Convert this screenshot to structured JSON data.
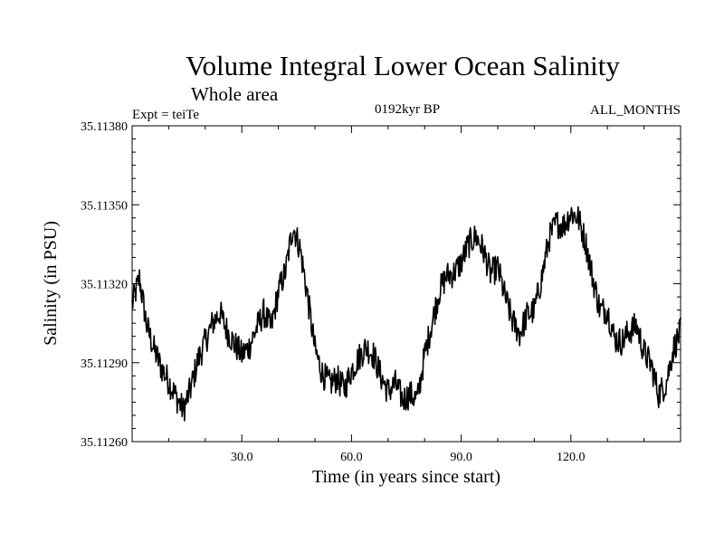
{
  "chart_data": {
    "type": "line",
    "title": "Volume Integral Lower Ocean Salinity",
    "subtitle": "Whole area",
    "experiment_label": "Expt = teiTe",
    "period_label": "0192kyr BP",
    "months_label": "ALL_MONTHS",
    "xlabel": "Time (in years since start)",
    "ylabel": "Salinity (in PSU)",
    "xlim": [
      0,
      150
    ],
    "ylim": [
      35.1126,
      35.1138
    ],
    "x_ticks": [
      30,
      60,
      90,
      120
    ],
    "x_tick_labels": [
      "30.0",
      "60.0",
      "90.0",
      "120.0"
    ],
    "y_ticks": [
      35.1126,
      35.1129,
      35.1132,
      35.1135,
      35.1138
    ],
    "y_tick_labels": [
      "35.11260",
      "35.11290",
      "35.11320",
      "35.11350",
      "35.11380"
    ],
    "grid": false,
    "series": [
      {
        "name": "Salinity",
        "x": [
          0,
          2,
          4,
          6,
          8,
          10,
          12,
          14,
          16,
          18,
          20,
          22,
          24,
          26,
          28,
          30,
          32,
          34,
          36,
          38,
          40,
          42,
          44,
          46,
          48,
          50,
          52,
          54,
          56,
          58,
          60,
          62,
          64,
          66,
          68,
          70,
          72,
          74,
          76,
          78,
          80,
          82,
          84,
          86,
          88,
          90,
          92,
          94,
          96,
          98,
          100,
          102,
          104,
          106,
          108,
          110,
          112,
          114,
          116,
          118,
          120,
          122,
          124,
          126,
          128,
          130,
          132,
          134,
          136,
          138,
          140,
          142,
          144,
          146,
          148,
          150
        ],
        "values": [
          35.11312,
          35.11322,
          35.11304,
          35.11295,
          35.11288,
          35.11283,
          35.11277,
          35.11272,
          35.1128,
          35.11291,
          35.11298,
          35.11305,
          35.11309,
          35.11302,
          35.11297,
          35.11293,
          35.11296,
          35.11303,
          35.11309,
          35.11303,
          35.11317,
          35.11325,
          35.11342,
          35.11333,
          35.11315,
          35.11295,
          35.11286,
          35.11282,
          35.11284,
          35.1128,
          35.11287,
          35.11292,
          35.11296,
          35.11293,
          35.11285,
          35.11279,
          35.11282,
          35.11276,
          35.11278,
          35.11276,
          35.11293,
          35.11305,
          35.11317,
          35.11323,
          35.11324,
          35.11328,
          35.11335,
          35.11338,
          35.11333,
          35.11324,
          35.11326,
          35.11315,
          35.11306,
          35.11301,
          35.11308,
          35.1131,
          35.11322,
          35.11337,
          35.11343,
          35.11342,
          35.11347,
          35.11345,
          35.11336,
          35.11322,
          35.1131,
          35.1131,
          35.11299,
          35.11298,
          35.11302,
          35.11304,
          35.11294,
          35.11289,
          35.11278,
          35.11282,
          35.11295,
          35.11302
        ]
      }
    ]
  }
}
